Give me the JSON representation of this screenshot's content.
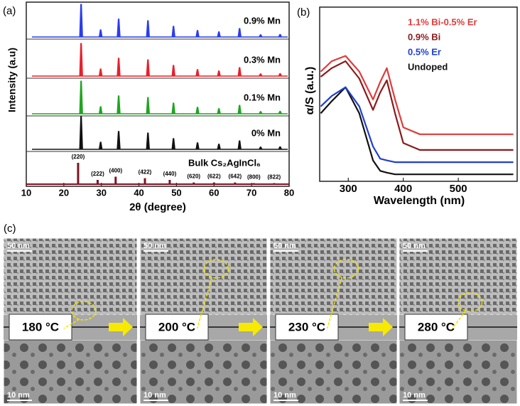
{
  "chart_data": [
    {
      "type": "stacked-pattern",
      "label": "(a)",
      "xlabel": "2θ (degree)",
      "ylabel": "Intensity (a.u)",
      "xlim": [
        10,
        80
      ],
      "xticks": [
        10,
        20,
        30,
        40,
        50,
        60,
        70,
        80
      ],
      "peak_positions": [
        24.6,
        29.8,
        34.6,
        42.4,
        49.2,
        55.6,
        61.3,
        66.8,
        72.4,
        77.6
      ],
      "peak_heights": [
        1,
        0.22,
        0.55,
        0.5,
        0.33,
        0.2,
        0.16,
        0.26,
        0.07,
        0.08
      ],
      "series": [
        {
          "name": "0.9% Mn",
          "color": "#2a3cf0"
        },
        {
          "name": "0.3% Mn",
          "color": "#e8202a"
        },
        {
          "name": "0.1% Mn",
          "color": "#1fa51f"
        },
        {
          "name": "0% Mn",
          "color": "#111111"
        }
      ],
      "reference": {
        "name": "Bulk Cs₂AgInCl₆",
        "color": "#7a1424",
        "positions": [
          23.8,
          29.0,
          33.8,
          41.6,
          48.2,
          54.6,
          60.0,
          65.6,
          70.6,
          76.0
        ],
        "heights": [
          1,
          0.2,
          0.35,
          0.28,
          0.2,
          0.08,
          0.08,
          0.08,
          0.05,
          0.05
        ],
        "labels": [
          "(220)",
          "(222)",
          "(400)",
          "(422)",
          "(440)",
          "(620)",
          "(622)",
          "(642)",
          "(800)",
          "(822)"
        ]
      }
    },
    {
      "type": "line",
      "label": "(b)",
      "xlabel": "Wavelength (nm)",
      "ylabel": "α/S (a.u.)",
      "xlim": [
        248,
        607
      ],
      "xticks": [
        300,
        400,
        500
      ],
      "ylim": [
        0,
        1
      ],
      "x": [
        250,
        270,
        295,
        320,
        345,
        358,
        370,
        385,
        400,
        430,
        500,
        600
      ],
      "series": [
        {
          "name": "1.1% Bi-0.5% Er",
          "color": "#e03a3a",
          "values": [
            0.63,
            0.69,
            0.72,
            0.63,
            0.47,
            0.57,
            0.65,
            0.47,
            0.31,
            0.27,
            0.27,
            0.27
          ]
        },
        {
          "name": "0.9% Bi",
          "color": "#8b1a1a",
          "values": [
            0.6,
            0.65,
            0.69,
            0.59,
            0.41,
            0.51,
            0.58,
            0.39,
            0.22,
            0.18,
            0.18,
            0.18
          ]
        },
        {
          "name": "0.5% Er",
          "color": "#1f3fcf",
          "values": [
            0.43,
            0.49,
            0.54,
            0.43,
            0.2,
            0.13,
            0.12,
            0.11,
            0.11,
            0.11,
            0.11,
            0.11
          ]
        },
        {
          "name": "Undoped",
          "color": "#111111",
          "values": [
            0.39,
            0.46,
            0.54,
            0.39,
            0.12,
            0.06,
            0.05,
            0.04,
            0.04,
            0.04,
            0.04,
            0.04
          ]
        }
      ]
    }
  ],
  "micrographs": {
    "label": "(c)",
    "tiles": [
      {
        "temperature": "180 °C",
        "scale_top": "50 nm",
        "scale_bottom": "10 nm"
      },
      {
        "temperature": "200 °C",
        "scale_top": "50 nm",
        "scale_bottom": "10 nm"
      },
      {
        "temperature": "230 °C",
        "scale_top": "50 nm",
        "scale_bottom": "10 nm"
      },
      {
        "temperature": "280 °C",
        "scale_top": "50 nm",
        "scale_bottom": "10 nm"
      }
    ]
  }
}
